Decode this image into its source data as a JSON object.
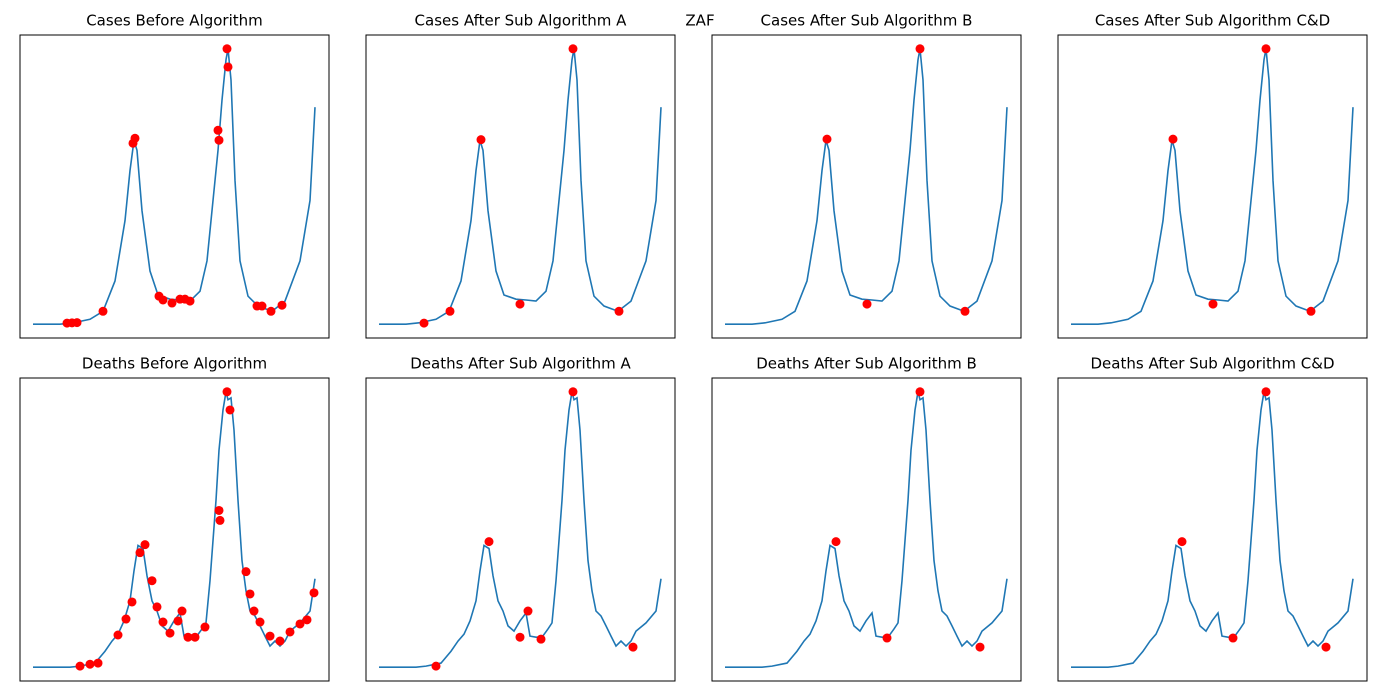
{
  "title": "ZAF",
  "chart_data": [
    {
      "type": "line",
      "title": "Cases Before Algorithm",
      "xlim": [
        -13,
        296
      ],
      "ylim": [
        -5,
        105
      ],
      "series": [
        {
          "type": "line",
          "color": "#1f77b4",
          "x": [
            0,
            27,
            40,
            57,
            70,
            82,
            92,
            97,
            101,
            104,
            109,
            117,
            125,
            137,
            147,
            157,
            167,
            174,
            180,
            185,
            189,
            193,
            195,
            198,
            202,
            207,
            215,
            225,
            239,
            252,
            267,
            277,
            282
          ],
          "values": [
            0,
            0,
            0.5,
            1.8,
            4.7,
            15.7,
            37.6,
            55.8,
            66.8,
            63.1,
            41.2,
            19.3,
            10.6,
            9.1,
            8.8,
            8.4,
            12,
            23,
            44.9,
            63.1,
            81.4,
            96,
            100,
            88.7,
            52.2,
            23,
            10.2,
            6.6,
            4.7,
            8.4,
            23,
            44.9,
            78.8
          ]
        },
        {
          "type": "scatter",
          "color": "#ff0000",
          "x": [
            34,
            39,
            44,
            70,
            100,
            102,
            126,
            130,
            139,
            147,
            152,
            157,
            185,
            186,
            194,
            195,
            224,
            229,
            238,
            249
          ],
          "values": [
            0.4,
            0.5,
            0.6,
            4.7,
            65.7,
            67.5,
            10.2,
            8.8,
            7.7,
            9.1,
            9.1,
            8.4,
            70.4,
            66.8,
            100,
            93.4,
            6.6,
            6.6,
            4.7,
            6.9
          ]
        }
      ]
    },
    {
      "type": "line",
      "title": "Cases After Sub Algorithm A",
      "xlim": [
        -13,
        296
      ],
      "ylim": [
        -5,
        105
      ],
      "series": [
        {
          "type": "line",
          "color": "#1f77b4",
          "x": [
            0,
            27,
            40,
            57,
            70,
            82,
            92,
            97,
            101,
            104,
            109,
            117,
            125,
            137,
            147,
            157,
            167,
            174,
            180,
            185,
            189,
            193,
            195,
            198,
            202,
            207,
            215,
            225,
            239,
            252,
            267,
            277,
            282
          ],
          "values": [
            0,
            0,
            0.5,
            1.8,
            4.7,
            15.7,
            37.6,
            55.8,
            66.8,
            63.1,
            41.2,
            19.3,
            10.6,
            9.1,
            8.8,
            8.4,
            12,
            23,
            44.9,
            63.1,
            81.4,
            96,
            100,
            88.7,
            52.2,
            23,
            10.2,
            6.6,
            4.7,
            8.4,
            23,
            44.9,
            78.8
          ]
        },
        {
          "type": "scatter",
          "color": "#ff0000",
          "x": [
            45,
            71,
            102,
            141,
            194,
            240
          ],
          "values": [
            0.4,
            4.7,
            67,
            7.3,
            100,
            4.7
          ]
        }
      ]
    },
    {
      "type": "line",
      "title": "Cases After Sub Algorithm B",
      "xlim": [
        -13,
        296
      ],
      "ylim": [
        -5,
        105
      ],
      "series": [
        {
          "type": "line",
          "color": "#1f77b4",
          "x": [
            0,
            27,
            40,
            57,
            70,
            82,
            92,
            97,
            101,
            104,
            109,
            117,
            125,
            137,
            147,
            157,
            167,
            174,
            180,
            185,
            189,
            193,
            195,
            198,
            202,
            207,
            215,
            225,
            239,
            252,
            267,
            277,
            282
          ],
          "values": [
            0,
            0,
            0.5,
            1.8,
            4.7,
            15.7,
            37.6,
            55.8,
            66.8,
            63.1,
            41.2,
            19.3,
            10.6,
            9.1,
            8.8,
            8.4,
            12,
            23,
            44.9,
            63.1,
            81.4,
            96,
            100,
            88.7,
            52.2,
            23,
            10.2,
            6.6,
            4.7,
            8.4,
            23,
            44.9,
            78.8
          ]
        },
        {
          "type": "scatter",
          "color": "#ff0000",
          "x": [
            102,
            142,
            195,
            240
          ],
          "values": [
            67.2,
            7.3,
            100,
            4.7
          ]
        }
      ]
    },
    {
      "type": "line",
      "title": "Cases After Sub Algorithm C&D",
      "xlim": [
        -13,
        296
      ],
      "ylim": [
        -5,
        105
      ],
      "series": [
        {
          "type": "line",
          "color": "#1f77b4",
          "x": [
            0,
            27,
            40,
            57,
            70,
            82,
            92,
            97,
            101,
            104,
            109,
            117,
            125,
            137,
            147,
            157,
            167,
            174,
            180,
            185,
            189,
            193,
            195,
            198,
            202,
            207,
            215,
            225,
            239,
            252,
            267,
            277,
            282
          ],
          "values": [
            0,
            0,
            0.5,
            1.8,
            4.7,
            15.7,
            37.6,
            55.8,
            66.8,
            63.1,
            41.2,
            19.3,
            10.6,
            9.1,
            8.8,
            8.4,
            12,
            23,
            44.9,
            63.1,
            81.4,
            96,
            100,
            88.7,
            52.2,
            23,
            10.2,
            6.6,
            4.7,
            8.4,
            23,
            44.9,
            78.8
          ]
        },
        {
          "type": "scatter",
          "color": "#ff0000",
          "x": [
            102,
            142,
            195,
            240
          ],
          "values": [
            67.2,
            7.3,
            100,
            4.7
          ]
        }
      ]
    },
    {
      "type": "line",
      "title": "Deaths Before Algorithm",
      "xlim": [
        -13,
        296
      ],
      "ylim": [
        -5,
        105
      ],
      "series": [
        {
          "type": "line",
          "color": "#1f77b4",
          "x": [
            0,
            37,
            47,
            62,
            72,
            79,
            85,
            91,
            97,
            101,
            105,
            110,
            114,
            119,
            124,
            129,
            135,
            141,
            147,
            151,
            157,
            163,
            169,
            173,
            177,
            180,
            183,
            186,
            190,
            193,
            195,
            198,
            201,
            205,
            209,
            213,
            217,
            222,
            227,
            232,
            237,
            242,
            247,
            252,
            257,
            267,
            277,
            282
          ],
          "values": [
            0,
            0,
            0.4,
            1.5,
            5.8,
            9.5,
            12,
            16.8,
            24.1,
            35,
            44.2,
            43.1,
            33.2,
            24.1,
            20.4,
            15,
            13.1,
            16.8,
            19.7,
            11.3,
            10.9,
            10.9,
            13.9,
            16.1,
            31.4,
            46,
            60.6,
            78.8,
            93.4,
            100,
            97.1,
            97.8,
            86.1,
            60.6,
            38.7,
            27.7,
            20.4,
            18.6,
            15,
            11.3,
            7.7,
            9.5,
            7.7,
            9.5,
            13.1,
            16.1,
            20.4,
            32.1
          ]
        },
        {
          "type": "scatter",
          "color": "#ff0000",
          "x": [
            47,
            57,
            65,
            85,
            93,
            99,
            107,
            112,
            119,
            124,
            130,
            137,
            145,
            149,
            155,
            162,
            172,
            186,
            187,
            194,
            197,
            213,
            217,
            221,
            227,
            237,
            247,
            257,
            267,
            274,
            281
          ],
          "values": [
            0.4,
            1.1,
            1.5,
            11.7,
            17.5,
            23.7,
            41.6,
            44.5,
            31.4,
            21.9,
            16.4,
            12.4,
            16.8,
            20.4,
            10.9,
            10.9,
            14.6,
            56.9,
            53.3,
            100,
            93.4,
            34.7,
            26.6,
            20.4,
            16.4,
            11.3,
            9.5,
            12.8,
            15.7,
            17.2,
            27
          ]
        }
      ]
    },
    {
      "type": "line",
      "title": "Deaths After Sub Algorithm A",
      "xlim": [
        -13,
        296
      ],
      "ylim": [
        -5,
        105
      ],
      "series": [
        {
          "type": "line",
          "color": "#1f77b4",
          "x": [
            0,
            37,
            47,
            62,
            72,
            79,
            85,
            91,
            97,
            101,
            105,
            110,
            114,
            119,
            124,
            129,
            135,
            141,
            147,
            151,
            157,
            163,
            169,
            173,
            177,
            180,
            183,
            186,
            190,
            193,
            195,
            198,
            201,
            205,
            209,
            213,
            217,
            222,
            227,
            232,
            237,
            242,
            247,
            252,
            257,
            267,
            277,
            282
          ],
          "values": [
            0,
            0,
            0.4,
            1.5,
            5.8,
            9.5,
            12,
            16.8,
            24.1,
            35,
            44.2,
            43.1,
            33.2,
            24.1,
            20.4,
            15,
            13.1,
            16.8,
            19.7,
            11.3,
            10.9,
            10.9,
            13.9,
            16.1,
            31.4,
            46,
            60.6,
            78.8,
            93.4,
            100,
            97.1,
            97.8,
            86.1,
            60.6,
            38.7,
            27.7,
            20.4,
            18.6,
            15,
            11.3,
            7.7,
            9.5,
            7.7,
            9.5,
            13.1,
            16.1,
            20.4,
            32.1
          ]
        },
        {
          "type": "scatter",
          "color": "#ff0000",
          "x": [
            57,
            110,
            141,
            149,
            162,
            194,
            254
          ],
          "values": [
            0.4,
            45.6,
            10.9,
            20.4,
            10.2,
            100,
            7.3
          ]
        }
      ]
    },
    {
      "type": "line",
      "title": "Deaths After Sub Algorithm B",
      "xlim": [
        -13,
        296
      ],
      "ylim": [
        -5,
        105
      ],
      "series": [
        {
          "type": "line",
          "color": "#1f77b4",
          "x": [
            0,
            37,
            47,
            62,
            72,
            79,
            85,
            91,
            97,
            101,
            105,
            110,
            114,
            119,
            124,
            129,
            135,
            141,
            147,
            151,
            157,
            163,
            169,
            173,
            177,
            180,
            183,
            186,
            190,
            193,
            195,
            198,
            201,
            205,
            209,
            213,
            217,
            222,
            227,
            232,
            237,
            242,
            247,
            252,
            257,
            267,
            277,
            282
          ],
          "values": [
            0,
            0,
            0.4,
            1.5,
            5.8,
            9.5,
            12,
            16.8,
            24.1,
            35,
            44.2,
            43.1,
            33.2,
            24.1,
            20.4,
            15,
            13.1,
            16.8,
            19.7,
            11.3,
            10.9,
            10.9,
            13.9,
            16.1,
            31.4,
            46,
            60.6,
            78.8,
            93.4,
            100,
            97.1,
            97.8,
            86.1,
            60.6,
            38.7,
            27.7,
            20.4,
            18.6,
            15,
            11.3,
            7.7,
            9.5,
            7.7,
            9.5,
            13.1,
            16.1,
            20.4,
            32.1
          ]
        },
        {
          "type": "scatter",
          "color": "#ff0000",
          "x": [
            111,
            162,
            195,
            255
          ],
          "values": [
            45.6,
            10.6,
            100,
            7.3
          ]
        }
      ]
    },
    {
      "type": "line",
      "title": "Deaths After Sub Algorithm C&D",
      "xlim": [
        -13,
        296
      ],
      "ylim": [
        -5,
        105
      ],
      "series": [
        {
          "type": "line",
          "color": "#1f77b4",
          "x": [
            0,
            37,
            47,
            62,
            72,
            79,
            85,
            91,
            97,
            101,
            105,
            110,
            114,
            119,
            124,
            129,
            135,
            141,
            147,
            151,
            157,
            163,
            169,
            173,
            177,
            180,
            183,
            186,
            190,
            193,
            195,
            198,
            201,
            205,
            209,
            213,
            217,
            222,
            227,
            232,
            237,
            242,
            247,
            252,
            257,
            267,
            277,
            282
          ],
          "values": [
            0,
            0,
            0.4,
            1.5,
            5.8,
            9.5,
            12,
            16.8,
            24.1,
            35,
            44.2,
            43.1,
            33.2,
            24.1,
            20.4,
            15,
            13.1,
            16.8,
            19.7,
            11.3,
            10.9,
            10.9,
            13.9,
            16.1,
            31.4,
            46,
            60.6,
            78.8,
            93.4,
            100,
            97.1,
            97.8,
            86.1,
            60.6,
            38.7,
            27.7,
            20.4,
            18.6,
            15,
            11.3,
            7.7,
            9.5,
            7.7,
            9.5,
            13.1,
            16.1,
            20.4,
            32.1
          ]
        },
        {
          "type": "scatter",
          "color": "#ff0000",
          "x": [
            111,
            162,
            195,
            255
          ],
          "values": [
            45.6,
            10.6,
            100,
            7.3
          ]
        }
      ]
    }
  ]
}
